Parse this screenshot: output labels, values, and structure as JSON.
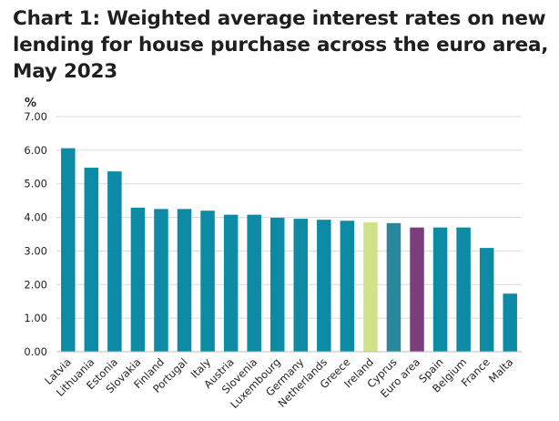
{
  "chart_data": {
    "type": "bar",
    "title_lines": [
      "Chart 1: Weighted average interest rates on new",
      "lending for house purchase across the euro area,",
      "May 2023"
    ],
    "ylabel": "%",
    "ylim": [
      0,
      7
    ],
    "ytick_labels": [
      "0.00",
      "1.00",
      "2.00",
      "3.00",
      "4.00",
      "5.00",
      "6.00",
      "7.00"
    ],
    "grid": true,
    "categories": [
      "Latvia",
      "Lithuania",
      "Estonia",
      "Slovakia",
      "Finland",
      "Portugal",
      "Italy",
      "Austria",
      "Slovenia",
      "Luxembourg",
      "Germany",
      "Netherlands",
      "Greece",
      "Ireland",
      "Cyprus",
      "Euro area",
      "Spain",
      "Belgium",
      "France",
      "Malta"
    ],
    "values": [
      6.06,
      5.48,
      5.37,
      4.29,
      4.25,
      4.25,
      4.2,
      4.08,
      4.08,
      3.99,
      3.96,
      3.93,
      3.9,
      3.85,
      3.83,
      3.7,
      3.7,
      3.7,
      3.09,
      1.73
    ],
    "colors": [
      "#0d8ba5",
      "#0d8ba5",
      "#0d8ba5",
      "#0d8ba5",
      "#0d8ba5",
      "#0d8ba5",
      "#0d8ba5",
      "#0d8ba5",
      "#0d8ba5",
      "#0d8ba5",
      "#0d8ba5",
      "#0d8ba5",
      "#0d8ba5",
      "#cfe289",
      "#29889a",
      "#7b3d7c",
      "#0d8ba5",
      "#0d8ba5",
      "#0d8ba5",
      "#0d8ba5"
    ]
  }
}
